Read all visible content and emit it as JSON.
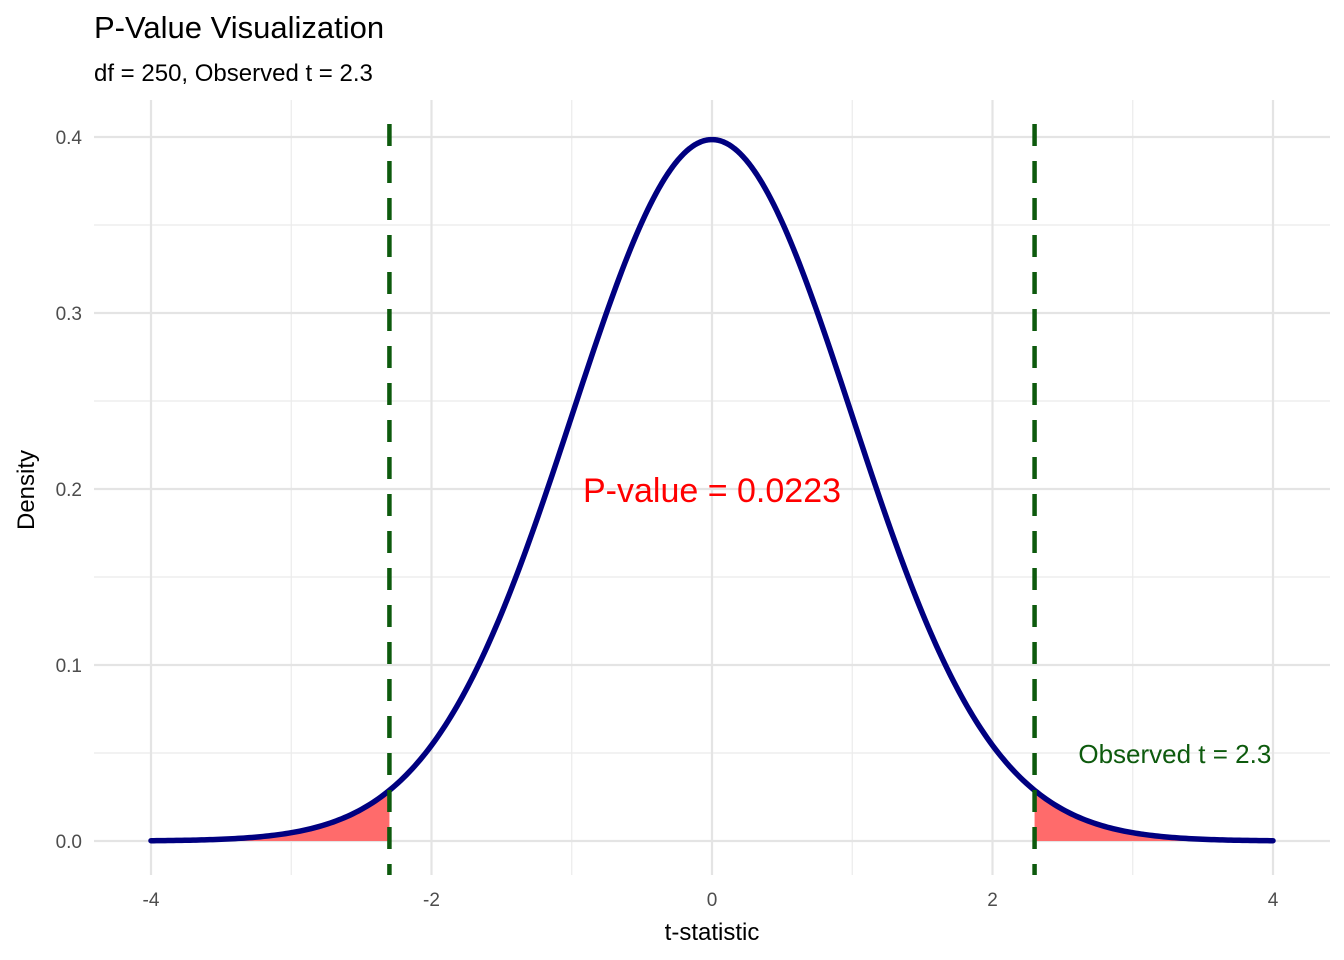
{
  "chart_data": {
    "type": "area",
    "title": "P-Value Visualization",
    "subtitle": "df = 250, Observed t = 2.3",
    "xlabel": "t-statistic",
    "ylabel": "Density",
    "xlim": [
      -4.2,
      4.2
    ],
    "ylim": [
      -0.02,
      0.42
    ],
    "x_ticks": [
      -4,
      -2,
      0,
      2,
      4
    ],
    "x_tick_labels": [
      "-4",
      "-2",
      "0",
      "2",
      "4"
    ],
    "y_ticks": [
      0.0,
      0.1,
      0.2,
      0.3,
      0.4
    ],
    "y_tick_labels": [
      "0.0",
      "0.1",
      "0.2",
      "0.3",
      "0.4"
    ],
    "grid": true,
    "density_curve": {
      "distribution": "t",
      "df": 250,
      "x_range": [
        -4,
        4
      ],
      "color": "#000080",
      "points": [
        [
          -4.0,
          0.0001
        ],
        [
          -3.5,
          0.0009
        ],
        [
          -3.0,
          0.0045
        ],
        [
          -2.5,
          0.0177
        ],
        [
          -2.3,
          0.0284
        ],
        [
          -2.0,
          0.0543
        ],
        [
          -1.5,
          0.1296
        ],
        [
          -1.0,
          0.2416
        ],
        [
          -0.5,
          0.3519
        ],
        [
          0.0,
          0.3985
        ],
        [
          0.5,
          0.3519
        ],
        [
          1.0,
          0.2416
        ],
        [
          1.5,
          0.1296
        ],
        [
          2.0,
          0.0543
        ],
        [
          2.3,
          0.0284
        ],
        [
          2.5,
          0.0177
        ],
        [
          3.0,
          0.0045
        ],
        [
          3.5,
          0.0009
        ],
        [
          4.0,
          0.0001
        ]
      ]
    },
    "shaded_tails": {
      "left": [
        -4,
        -2.3
      ],
      "right": [
        2.3,
        4
      ],
      "color": "#ff6b6b"
    },
    "observed_lines": {
      "values": [
        -2.3,
        2.3
      ],
      "color": "#0d5a0d",
      "style": "dashed"
    },
    "annotations": [
      {
        "text": "P-value = 0.0223",
        "x": 0,
        "y": 0.2,
        "color": "#ff0000"
      },
      {
        "text": "Observed t = 2.3",
        "x": 3.3,
        "y": 0.05,
        "color": "#0d5a0d"
      }
    ]
  }
}
